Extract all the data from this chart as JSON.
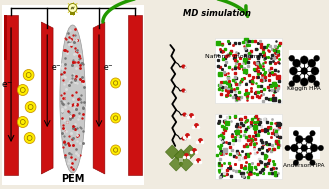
{
  "bg_color": "#f0ebe0",
  "text_md_simulation": "MD simulation",
  "text_nafion": "Nafion® monomer",
  "text_keggin": "Keggin HPA",
  "text_anderson": "Anderson HPA",
  "text_pem": "PEM",
  "red_color": "#cc1111",
  "green_arrow_color": "#229900",
  "yellow_circle_color": "#ffee00",
  "membrane_color": "#c8c8c8",
  "membrane_edge": "#999999"
}
